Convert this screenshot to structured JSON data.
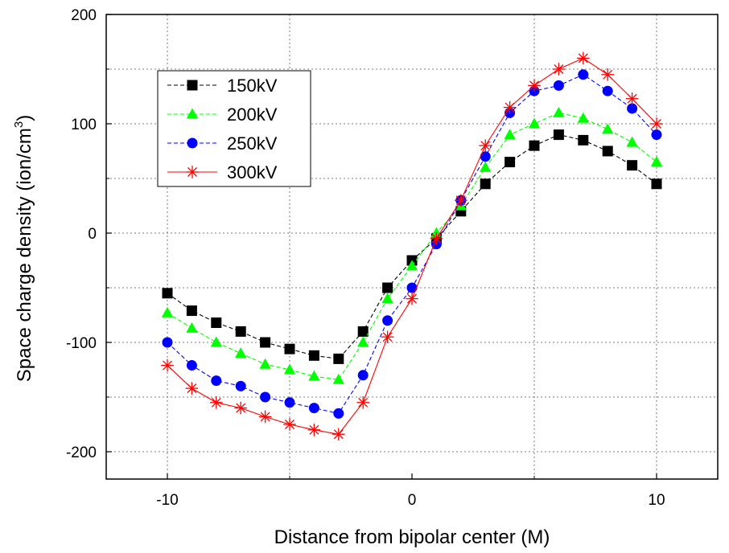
{
  "chart_data": {
    "type": "line",
    "title": "",
    "xlabel": "Distance from bipolar center (M)",
    "ylabel_main": "Space charge density (ion/cm",
    "ylabel_sup": "3",
    "ylabel_end": ")",
    "xlim": [
      -12.5,
      12.5
    ],
    "ylim": [
      -225,
      200
    ],
    "x_ticks": [
      -10,
      0,
      10
    ],
    "x_tick_labels": [
      "-10",
      "0",
      "10"
    ],
    "y_ticks": [
      -200,
      -100,
      0,
      100,
      200
    ],
    "y_tick_labels": [
      "-200",
      "-100",
      "0",
      "100",
      "200"
    ],
    "grid": true,
    "legend_position": "top-left",
    "x": [
      -10,
      -9,
      -8,
      -7,
      -6,
      -5,
      -4,
      -3,
      -2,
      -1,
      0,
      1,
      2,
      3,
      4,
      5,
      6,
      7,
      8,
      9,
      10
    ],
    "series": [
      {
        "name": "150kV",
        "color": "#000000",
        "marker": "square",
        "dash": "5,3",
        "values": [
          -55,
          -71,
          -82,
          -90,
          -100,
          -106,
          -112,
          -115,
          -90,
          -50,
          -25,
          -5,
          20,
          45,
          65,
          80,
          90,
          85,
          75,
          62,
          45
        ]
      },
      {
        "name": "200kV",
        "color": "#00ff00",
        "marker": "triangle",
        "dash": "5,3",
        "values": [
          -73,
          -87,
          -100,
          -110,
          -120,
          -125,
          -131,
          -134,
          -100,
          -60,
          -30,
          0,
          25,
          60,
          90,
          100,
          110,
          105,
          95,
          83,
          65
        ]
      },
      {
        "name": "250kV",
        "color": "#0000ff",
        "marker": "circle",
        "dash": "5,3",
        "values": [
          -100,
          -121,
          -135,
          -140,
          -150,
          -155,
          -160,
          -165,
          -130,
          -80,
          -50,
          -10,
          30,
          70,
          110,
          130,
          135,
          145,
          130,
          114,
          90
        ]
      },
      {
        "name": "300kV",
        "color": "#ff0000",
        "marker": "asterisk",
        "dash": "",
        "values": [
          -121,
          -142,
          -155,
          -160,
          -168,
          -175,
          -180,
          -184,
          -155,
          -95,
          -60,
          -5,
          30,
          80,
          115,
          135,
          150,
          160,
          145,
          123,
          100
        ]
      }
    ]
  }
}
